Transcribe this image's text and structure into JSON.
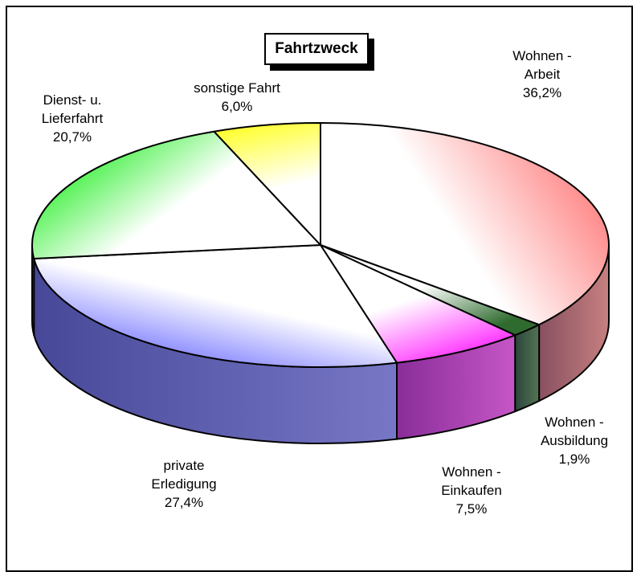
{
  "chart_data": {
    "type": "pie",
    "title": "Fahrtzweck",
    "slices": [
      {
        "name": "Wohnen - Arbeit",
        "value": 36.2,
        "label": [
          "Wohnen -",
          "Arbeit",
          "36,2%"
        ],
        "color": "#ff8080"
      },
      {
        "name": "Wohnen - Ausbildung",
        "value": 1.9,
        "label": [
          "Wohnen -",
          "Ausbildung",
          "1,9%"
        ],
        "color": "#2f6b2f"
      },
      {
        "name": "Wohnen - Einkaufen",
        "value": 7.5,
        "label": [
          "Wohnen -",
          "Einkaufen",
          "7,5%"
        ],
        "color": "#ff33ff"
      },
      {
        "name": "private Erledigung",
        "value": 27.4,
        "label": [
          "private",
          "Erledigung",
          "27,4%"
        ],
        "color": "#7070ff"
      },
      {
        "name": "Dienst- u. Lieferfahrt",
        "value": 20.7,
        "label": [
          "Dienst- u.",
          "Lieferfahrt",
          "20,7%"
        ],
        "color": "#22ee22"
      },
      {
        "name": "sonstige Fahrt",
        "value": 6.0,
        "label": [
          "sonstige Fahrt",
          "6,0%"
        ],
        "color": "#ffff33"
      }
    ]
  }
}
